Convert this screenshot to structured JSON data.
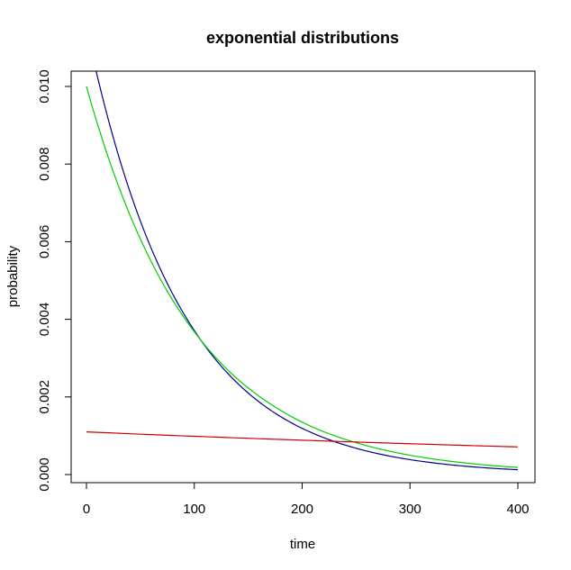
{
  "chart_data": {
    "type": "line",
    "title": "exponential distributions",
    "xlabel": "time",
    "ylabel": "probability",
    "xlim": [
      0,
      400
    ],
    "ylim": [
      0,
      0.01
    ],
    "x_ticks": [
      0,
      100,
      200,
      300,
      400
    ],
    "x_tick_labels": [
      "0",
      "100",
      "200",
      "300",
      "400"
    ],
    "y_ticks": [
      0,
      0.002,
      0.004,
      0.006,
      0.008,
      0.01
    ],
    "y_tick_labels": [
      "0.000",
      "0.002",
      "0.004",
      "0.006",
      "0.008",
      "0.010"
    ],
    "grid": false,
    "legend": "none",
    "series": [
      {
        "color": "#00008b",
        "x": [
          0,
          25,
          50,
          75,
          100,
          125,
          150,
          175,
          200,
          225,
          250,
          275,
          300,
          325,
          350,
          375,
          400
        ],
        "y": [
          0.0115,
          0.00867,
          0.00653,
          0.00492,
          0.00371,
          0.00279,
          0.0021,
          0.00158,
          0.00119,
          0.000899,
          0.000677,
          0.00051,
          0.000384,
          0.00029,
          0.000218,
          0.000164,
          0.000124
        ]
      },
      {
        "color": "#00cd00",
        "x": [
          0,
          25,
          50,
          75,
          100,
          125,
          150,
          175,
          200,
          225,
          250,
          275,
          300,
          325,
          350,
          375,
          400
        ],
        "y": [
          0.01,
          0.00779,
          0.00607,
          0.00472,
          0.00368,
          0.00286,
          0.00223,
          0.00174,
          0.00135,
          0.00105,
          0.000821,
          0.000639,
          0.000498,
          0.000388,
          0.000302,
          0.000235,
          0.000183
        ]
      },
      {
        "color": "#cd0000",
        "x": [
          0,
          50,
          100,
          150,
          200,
          250,
          300,
          350,
          400
        ],
        "y": [
          0.0011,
          0.00104,
          0.000986,
          0.000934,
          0.000885,
          0.000838,
          0.000794,
          0.000752,
          0.000712
        ]
      }
    ]
  }
}
